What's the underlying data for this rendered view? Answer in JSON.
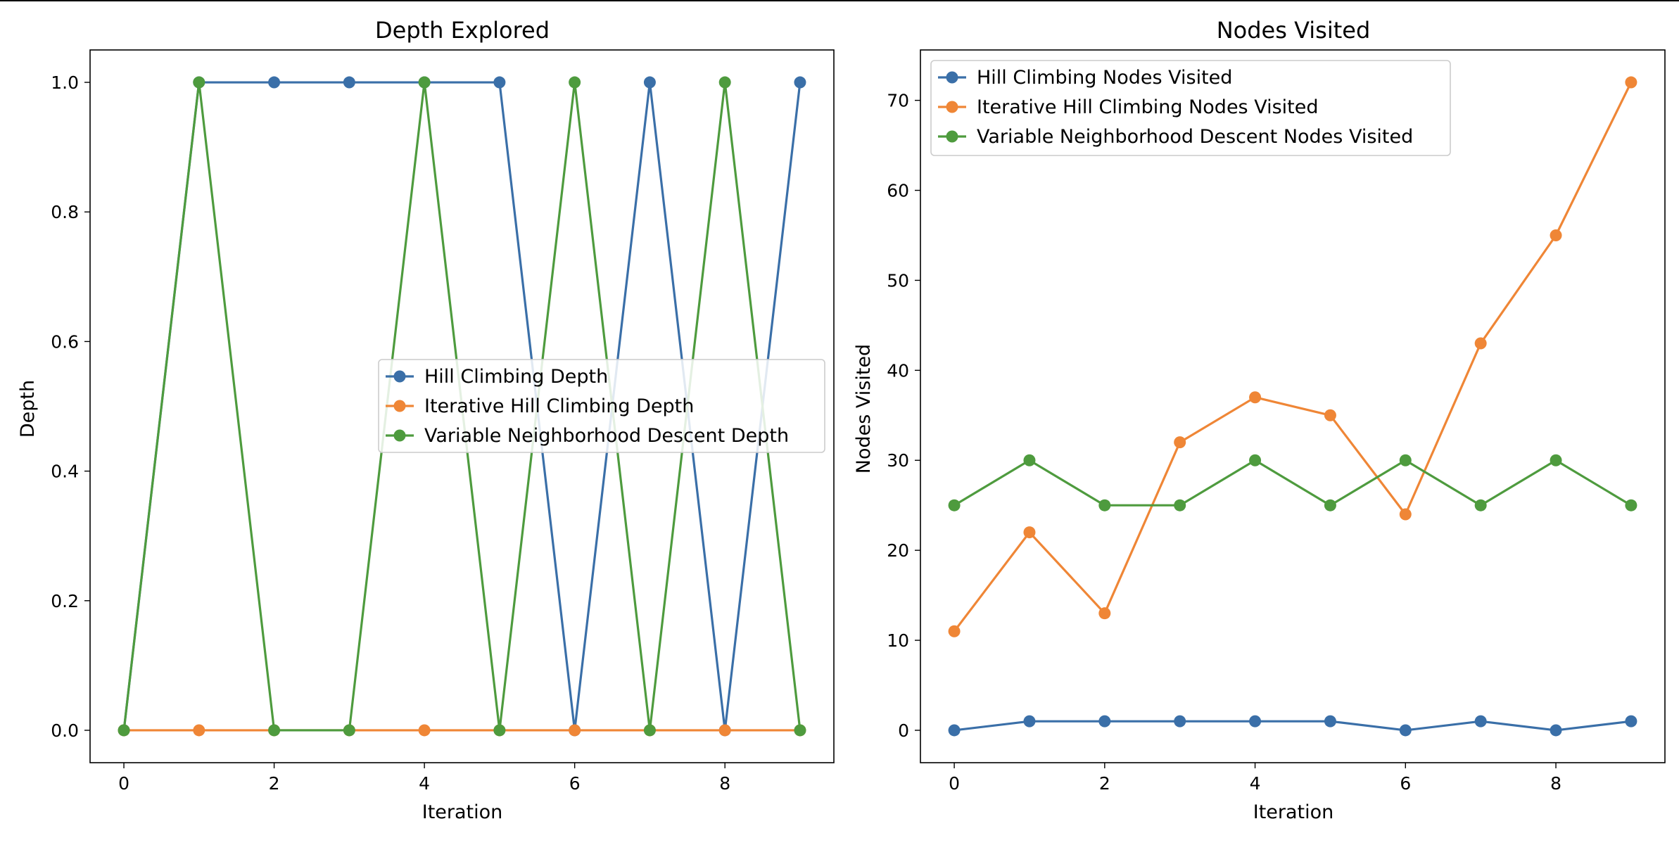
{
  "chart_data": [
    {
      "type": "line",
      "title": "Depth Explored",
      "xlabel": "Iteration",
      "ylabel": "Depth",
      "x": [
        0,
        1,
        2,
        3,
        4,
        5,
        6,
        7,
        8,
        9
      ],
      "xlim": [
        -0.45,
        9.45
      ],
      "ylim": [
        -0.05,
        1.05
      ],
      "xticks": [
        0,
        2,
        4,
        6,
        8
      ],
      "yticks": [
        0.0,
        0.2,
        0.4,
        0.6,
        0.8,
        1.0
      ],
      "ytick_format": 1,
      "grid": false,
      "legend_position": "center-right",
      "series": [
        {
          "name": "Hill Climbing Depth",
          "color": "#3a6fa8",
          "values": [
            0,
            1,
            1,
            1,
            1,
            1,
            0,
            1,
            0,
            1
          ]
        },
        {
          "name": "Iterative Hill Climbing Depth",
          "color": "#ef8636",
          "values": [
            0,
            0,
            0,
            0,
            0,
            0,
            0,
            0,
            0,
            0
          ]
        },
        {
          "name": "Variable Neighborhood Descent Depth",
          "color": "#4e9b3e",
          "values": [
            0,
            1,
            0,
            0,
            1,
            0,
            1,
            0,
            1,
            0
          ]
        }
      ]
    },
    {
      "type": "line",
      "title": "Nodes Visited",
      "xlabel": "Iteration",
      "ylabel": "Nodes Visited",
      "x": [
        0,
        1,
        2,
        3,
        4,
        5,
        6,
        7,
        8,
        9
      ],
      "xlim": [
        -0.45,
        9.45
      ],
      "ylim": [
        -3.6,
        75.6
      ],
      "xticks": [
        0,
        2,
        4,
        6,
        8
      ],
      "yticks": [
        0,
        10,
        20,
        30,
        40,
        50,
        60,
        70
      ],
      "ytick_format": 0,
      "grid": false,
      "legend_position": "upper-left",
      "series": [
        {
          "name": "Hill Climbing Nodes Visited",
          "color": "#3a6fa8",
          "values": [
            0,
            1,
            1,
            1,
            1,
            1,
            0,
            1,
            0,
            1
          ]
        },
        {
          "name": "Iterative Hill Climbing Nodes Visited",
          "color": "#ef8636",
          "values": [
            11,
            22,
            13,
            32,
            37,
            35,
            24,
            43,
            55,
            72
          ]
        },
        {
          "name": "Variable Neighborhood Descent Nodes Visited",
          "color": "#4e9b3e",
          "values": [
            25,
            30,
            25,
            25,
            30,
            25,
            30,
            25,
            30,
            25
          ]
        }
      ]
    }
  ]
}
